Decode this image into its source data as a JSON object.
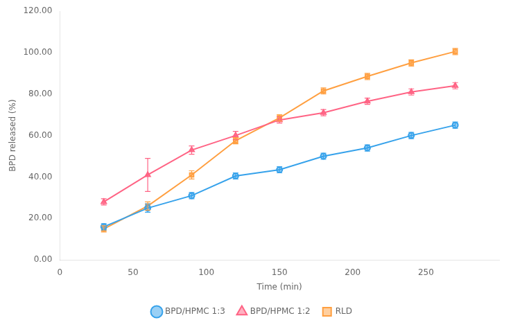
{
  "chart_data": {
    "type": "line",
    "x": [
      30,
      60,
      90,
      120,
      150,
      180,
      210,
      240,
      270
    ],
    "series": [
      {
        "name": "BPD/HPMC 1:3",
        "marker": "circle",
        "values": [
          16.0,
          25.0,
          31.0,
          40.5,
          43.5,
          50.0,
          54.0,
          60.0,
          65.0
        ],
        "errors": [
          1.5,
          2.0,
          1.5,
          1.5,
          1.5,
          1.5,
          1.5,
          1.5,
          1.5
        ]
      },
      {
        "name": "BPD/HPMC 1:2",
        "marker": "triangle",
        "values": [
          28.0,
          41.0,
          53.0,
          60.0,
          67.5,
          71.0,
          76.5,
          81.0,
          84.0
        ],
        "errors": [
          1.5,
          8.0,
          2.0,
          2.0,
          1.5,
          1.5,
          1.5,
          1.5,
          1.5
        ]
      },
      {
        "name": "RLD",
        "marker": "square",
        "values": [
          15.0,
          26.0,
          41.0,
          57.5,
          68.5,
          81.5,
          88.5,
          95.0,
          100.5
        ],
        "errors": [
          1.5,
          2.0,
          2.0,
          1.5,
          1.5,
          1.5,
          1.5,
          1.5,
          1.5
        ]
      }
    ],
    "xlabel": "Time (min)",
    "ylabel": "BPD released (%)",
    "xlim": [
      0,
      300
    ],
    "xticks": [
      0,
      50,
      100,
      150,
      200,
      250
    ],
    "ylim": [
      0,
      120
    ],
    "yticks": [
      {
        "value": 0,
        "label": "0.00"
      },
      {
        "value": 20,
        "label": "20.00"
      },
      {
        "value": 40,
        "label": "40.00"
      },
      {
        "value": 60,
        "label": "60.00"
      },
      {
        "value": 80,
        "label": "80.00"
      },
      {
        "value": 100,
        "label": "100.00"
      },
      {
        "value": 120,
        "label": "120.00"
      }
    ],
    "grid": false,
    "legend": "bottom"
  }
}
